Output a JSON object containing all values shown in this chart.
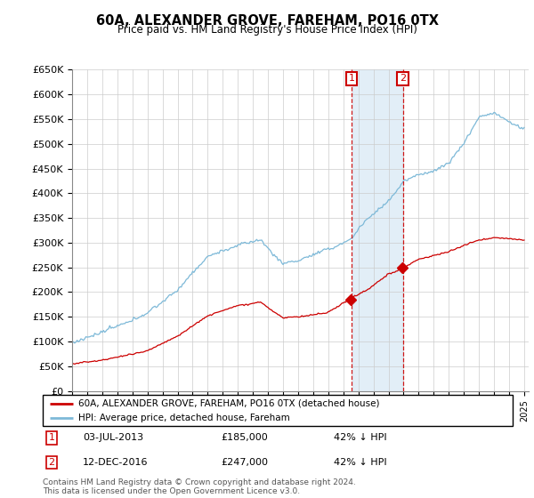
{
  "title": "60A, ALEXANDER GROVE, FAREHAM, PO16 0TX",
  "subtitle": "Price paid vs. HM Land Registry's House Price Index (HPI)",
  "legend_line1": "60A, ALEXANDER GROVE, FAREHAM, PO16 0TX (detached house)",
  "legend_line2": "HPI: Average price, detached house, Fareham",
  "annotation1_date": "03-JUL-2013",
  "annotation1_price": "£185,000",
  "annotation1_hpi": "42% ↓ HPI",
  "annotation2_date": "12-DEC-2016",
  "annotation2_price": "£247,000",
  "annotation2_hpi": "42% ↓ HPI",
  "footer": "Contains HM Land Registry data © Crown copyright and database right 2024.\nThis data is licensed under the Open Government Licence v3.0.",
  "hpi_color": "#7db9d8",
  "price_color": "#cc0000",
  "marker_color": "#cc0000",
  "annotation_color": "#cc0000",
  "vline_color": "#cc0000",
  "shade_color": "#d6e8f5",
  "ylim_min": 0,
  "ylim_max": 650000,
  "ytick_step": 50000,
  "year_start": 1995,
  "year_end": 2025,
  "purchase1_year": 2013.54,
  "purchase2_year": 2016.95,
  "purchase1_price": 185000,
  "purchase2_price": 247000,
  "background_color": "#ffffff",
  "grid_color": "#cccccc"
}
